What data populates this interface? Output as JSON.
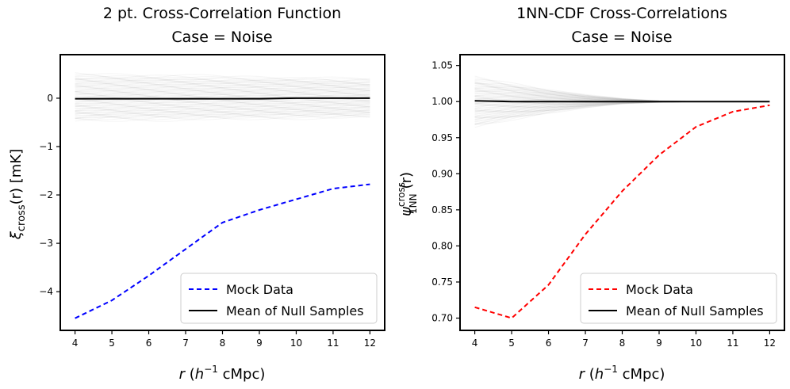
{
  "chart_data": [
    {
      "type": "line",
      "title": [
        "2 pt. Cross-Correlation Function",
        "Case = Noise"
      ],
      "xlabel": {
        "var": "r",
        "open": " (",
        "unit_base": "h",
        "unit_sup": "−1",
        "unit_rest": " cMpc)"
      },
      "ylabel": {
        "base": "ξ",
        "sub": "cross",
        "rest": "(r) [mK]"
      },
      "xlim": [
        3.6,
        12.4
      ],
      "ylim": [
        -4.8,
        0.9
      ],
      "xticks": [
        4,
        5,
        6,
        7,
        8,
        9,
        10,
        11,
        12
      ],
      "xtick_labels": [
        "4",
        "5",
        "6",
        "7",
        "8",
        "9",
        "10",
        "11",
        "12"
      ],
      "yticks": [
        0,
        -1,
        -2,
        -3,
        -4
      ],
      "ytick_labels": [
        "0",
        "−1",
        "−2",
        "−3",
        "−4"
      ],
      "legend_position": "lower-right",
      "series": [
        {
          "name": "Mock Data",
          "style": "dashed",
          "color": "#0000ff",
          "x": [
            4,
            5,
            6,
            7,
            8,
            9,
            10,
            11,
            12
          ],
          "values": [
            -4.55,
            -4.18,
            -3.67,
            -3.12,
            -2.57,
            -2.31,
            -2.09,
            -1.87,
            -1.78
          ]
        },
        {
          "name": "Mean of Null Samples",
          "style": "solid",
          "color": "#000000",
          "x": [
            4,
            5,
            6,
            7,
            8,
            9,
            10,
            11,
            12
          ],
          "values": [
            -0.01,
            -0.01,
            -0.01,
            -0.01,
            -0.01,
            -0.01,
            0.0,
            0.0,
            0.0
          ]
        }
      ],
      "null_band": {
        "color": "#aaaaaa",
        "x": [
          4,
          12
        ],
        "upper": [
          0.48,
          0.38
        ],
        "lower": [
          -0.45,
          -0.38
        ]
      }
    },
    {
      "type": "line",
      "title": [
        "1NN-CDF Cross-Correlations",
        "Case = Noise"
      ],
      "xlabel": {
        "var": "r",
        "open": " (",
        "unit_base": "h",
        "unit_sup": "−1",
        "unit_rest": " cMpc)"
      },
      "ylabel": {
        "base": "ψ",
        "sup": "cross",
        "sub": "1NN",
        "rest": "(r)"
      },
      "xlim": [
        3.6,
        12.4
      ],
      "ylim": [
        0.683,
        1.065
      ],
      "xticks": [
        4,
        5,
        6,
        7,
        8,
        9,
        10,
        11,
        12
      ],
      "xtick_labels": [
        "4",
        "5",
        "6",
        "7",
        "8",
        "9",
        "10",
        "11",
        "12"
      ],
      "yticks": [
        0.7,
        0.75,
        0.8,
        0.85,
        0.9,
        0.95,
        1.0,
        1.05
      ],
      "ytick_labels": [
        "0.70",
        "0.75",
        "0.80",
        "0.85",
        "0.90",
        "0.95",
        "1.00",
        "1.05"
      ],
      "legend_position": "lower-right",
      "series": [
        {
          "name": "Mock Data",
          "style": "dashed",
          "color": "#ff0000",
          "x": [
            4,
            5,
            6,
            7,
            8,
            9,
            10,
            11,
            12
          ],
          "values": [
            0.715,
            0.7,
            0.746,
            0.816,
            0.876,
            0.926,
            0.965,
            0.986,
            0.995
          ]
        },
        {
          "name": "Mean of Null Samples",
          "style": "solid",
          "color": "#000000",
          "x": [
            4,
            5,
            6,
            7,
            8,
            9,
            10,
            11,
            12
          ],
          "values": [
            1.001,
            1.0,
            1.0,
            1.0,
            1.0,
            1.0,
            1.0,
            1.0,
            1.0
          ]
        }
      ],
      "null_band": {
        "color": "#aaaaaa",
        "x": [
          4,
          5,
          6,
          7,
          8,
          9,
          10,
          11,
          12
        ],
        "upper": [
          1.032,
          1.024,
          1.016,
          1.009,
          1.004,
          1.001,
          1.0,
          1.0,
          1.0
        ],
        "lower": [
          0.966,
          0.976,
          0.985,
          0.992,
          0.997,
          0.999,
          1.0,
          1.0,
          1.0
        ]
      }
    }
  ]
}
